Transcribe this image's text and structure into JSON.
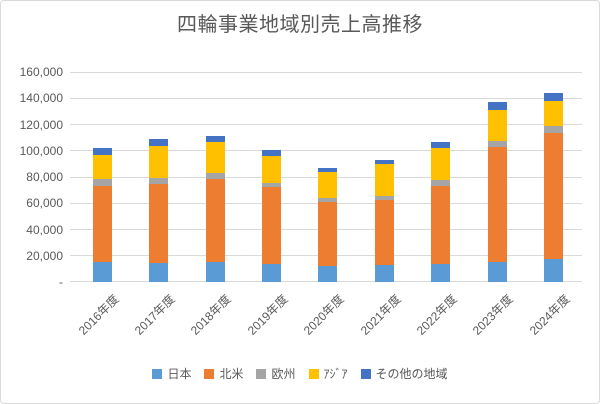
{
  "window": {
    "background": "#FFFFFF",
    "border_color": "#D9D9D9"
  },
  "chart_data": {
    "type": "bar",
    "stacked": true,
    "title": "四輪事業地域別売上高推移",
    "title_color": "#595959",
    "axis_text_color": "#595959",
    "gridline_color": "#D9D9D9",
    "grid": true,
    "legend_position": "bottom",
    "categories": [
      "2016年度",
      "2017年度",
      "2018年度",
      "2019年度",
      "2020年度",
      "2021年度",
      "2022年度",
      "2023年度",
      "2024年度"
    ],
    "series": [
      {
        "name": "日本",
        "color": "#5B9BD5",
        "values": [
          15400,
          14600,
          15400,
          14100,
          12300,
          12800,
          14100,
          15400,
          17400
        ]
      },
      {
        "name": "北米",
        "color": "#ED7D31",
        "values": [
          57500,
          60000,
          62800,
          58500,
          48300,
          50000,
          59000,
          87500,
          96000
        ]
      },
      {
        "name": "欧州",
        "color": "#A5A5A5",
        "values": [
          5700,
          4800,
          4600,
          2600,
          3300,
          2600,
          4800,
          4700,
          5800
        ]
      },
      {
        "name": "ｱｼﾞｱ",
        "color": "#FFC000",
        "values": [
          18000,
          24500,
          23600,
          21000,
          19800,
          24400,
          24200,
          23600,
          18700
        ]
      },
      {
        "name": "その他の地域",
        "color": "#4472C4",
        "values": [
          5500,
          5200,
          5100,
          4600,
          2900,
          3300,
          4300,
          5900,
          6400
        ]
      }
    ],
    "totals": [
      102100,
      109100,
      111500,
      100800,
      86600,
      93100,
      106400,
      137100,
      144300
    ],
    "ylim": [
      0,
      160000
    ],
    "ytick_step": 20000,
    "ytick_labels": [
      "-",
      "20,000",
      "40,000",
      "60,000",
      "80,000",
      "100,000",
      "120,000",
      "140,000",
      "160,000"
    ]
  }
}
